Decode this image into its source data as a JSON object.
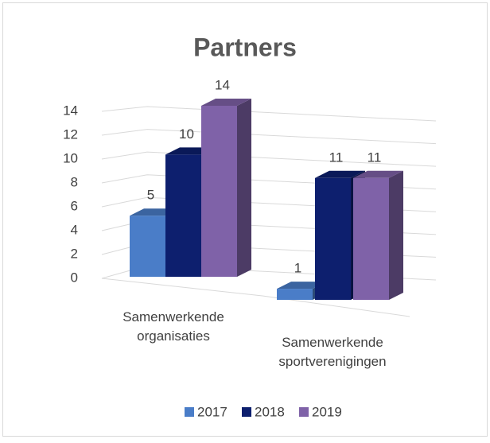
{
  "chart_data": {
    "type": "bar3d",
    "title": "Partners",
    "categories": [
      "Samenwerkende organisaties",
      "Samenwerkende sportverenigingen"
    ],
    "series": [
      {
        "name": "2017",
        "color": "#4a7dc8",
        "values": [
          5,
          1
        ]
      },
      {
        "name": "2018",
        "color": "#0d1f6e",
        "values": [
          10,
          11
        ]
      },
      {
        "name": "2019",
        "color": "#7f62a8",
        "values": [
          14,
          11
        ]
      }
    ],
    "ylim": [
      0,
      14
    ],
    "yticks": [
      0,
      2,
      4,
      6,
      8,
      10,
      12,
      14
    ],
    "grid": true,
    "legend": "bottom"
  }
}
